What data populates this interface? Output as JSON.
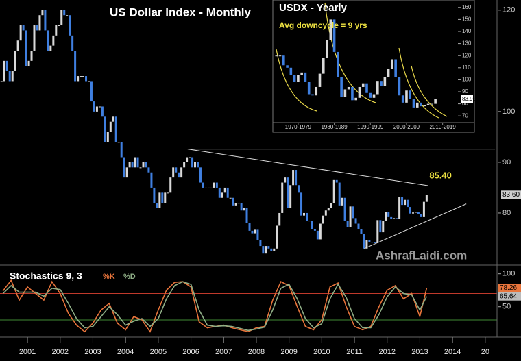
{
  "chart_data": [
    {
      "type": "candlestick",
      "title": "US Dollar Index - Monthly",
      "watermark": "AshrafLaidi.com",
      "color_up": "#d9d9d9",
      "color_down": "#3f7fe0",
      "x": [
        2000.208,
        2000.292,
        2000.375,
        2000.458,
        2000.542,
        2000.625,
        2000.708,
        2000.792,
        2000.875,
        2000.958,
        2001.042,
        2001.125,
        2001.208,
        2001.292,
        2001.375,
        2001.458,
        2001.542,
        2001.625,
        2001.708,
        2001.792,
        2001.875,
        2001.958,
        2002.042,
        2002.125,
        2002.208,
        2002.292,
        2002.375,
        2002.458,
        2002.542,
        2002.625,
        2002.708,
        2002.792,
        2002.875,
        2002.958,
        2003.042,
        2003.125,
        2003.208,
        2003.292,
        2003.375,
        2003.458,
        2003.542,
        2003.625,
        2003.708,
        2003.792,
        2003.875,
        2003.958,
        2004.042,
        2004.125,
        2004.208,
        2004.292,
        2004.375,
        2004.458,
        2004.542,
        2004.625,
        2004.708,
        2004.792,
        2004.875,
        2004.958,
        2005.042,
        2005.125,
        2005.208,
        2005.292,
        2005.375,
        2005.458,
        2005.542,
        2005.625,
        2005.708,
        2005.792,
        2005.875,
        2005.958,
        2006.042,
        2006.125,
        2006.208,
        2006.292,
        2006.375,
        2006.458,
        2006.542,
        2006.625,
        2006.708,
        2006.792,
        2006.875,
        2006.958,
        2007.042,
        2007.125,
        2007.208,
        2007.292,
        2007.375,
        2007.458,
        2007.542,
        2007.625,
        2007.708,
        2007.792,
        2007.875,
        2007.958,
        2008.042,
        2008.125,
        2008.208,
        2008.292,
        2008.375,
        2008.458,
        2008.542,
        2008.625,
        2008.708,
        2008.792,
        2008.875,
        2008.958,
        2009.042,
        2009.125,
        2009.208,
        2009.292,
        2009.375,
        2009.458,
        2009.542,
        2009.625,
        2009.708,
        2009.792,
        2009.875,
        2009.958,
        2010.042,
        2010.125,
        2010.208,
        2010.292,
        2010.375,
        2010.458,
        2010.542,
        2010.625,
        2010.708,
        2010.792,
        2010.875,
        2010.958,
        2011.042,
        2011.125,
        2011.208,
        2011.292,
        2011.375,
        2011.458,
        2011.542,
        2011.625,
        2011.708,
        2011.792,
        2011.875,
        2011.958,
        2012.042,
        2012.125,
        2012.208,
        2012.292,
        2012.375,
        2012.458,
        2012.542,
        2012.625,
        2012.708,
        2012.792,
        2012.875,
        2012.958,
        2013.042,
        2013.125,
        2013.208
      ],
      "values": [
        106,
        110,
        108,
        106,
        108,
        112,
        114,
        117,
        116,
        109,
        110,
        112,
        117,
        116,
        119,
        120,
        116,
        112,
        113,
        115,
        117,
        117,
        120,
        119,
        119,
        115,
        112,
        106,
        107,
        107,
        107,
        106,
        106,
        102,
        100,
        101,
        101,
        99,
        94,
        96,
        98,
        99,
        94,
        94,
        91,
        87,
        89,
        90,
        89,
        91,
        89,
        89,
        90,
        89,
        88,
        85,
        82,
        81,
        84,
        82,
        84,
        84,
        87,
        89,
        88,
        87,
        89,
        90,
        91,
        91,
        89,
        90,
        89,
        86,
        85,
        85,
        85,
        85,
        86,
        85,
        83,
        84,
        85,
        83,
        83,
        81.5,
        82,
        82,
        80.5,
        81,
        78,
        76.5,
        76,
        76.7,
        74.7,
        73.5,
        72,
        73.5,
        73,
        72.5,
        73,
        77.5,
        80,
        86,
        87,
        81,
        85.5,
        88.5,
        85.5,
        84,
        79.5,
        80,
        78.5,
        78.5,
        76.8,
        76.5,
        74.8,
        77.9,
        79.5,
        80.5,
        81,
        82,
        86.5,
        86,
        81.5,
        83,
        78.5,
        77.2,
        81.3,
        79,
        77.9,
        76.8,
        75.9,
        73,
        74.6,
        74.3,
        74.2,
        74.1,
        78.6,
        76.2,
        78.4,
        80.2,
        79.2,
        78.9,
        79,
        78.8,
        83.1,
        81.6,
        82.6,
        81.2,
        79.9,
        80.1,
        80.2,
        79.8,
        79.2,
        82.2,
        83.6
      ],
      "xlim": [
        2000.16,
        2015.36
      ],
      "ylim": [
        70,
        122
      ],
      "xticks": [
        2001,
        2002,
        2003,
        2004,
        2005,
        2006,
        2007,
        2008,
        2009,
        2010,
        2011,
        2012,
        2013,
        2014,
        {
          "value": 2015,
          "label": "20"
        }
      ],
      "yticks": [
        80,
        90,
        100,
        120
      ],
      "price_tag": {
        "value": 83.6,
        "label": "83.60"
      },
      "trendlines": [
        {
          "x": [
            2005.9,
            2013.25
          ],
          "y": [
            92.6,
            85.4
          ]
        },
        {
          "x": [
            2005.9,
            2015.3
          ],
          "y": [
            92.6,
            92.6
          ]
        },
        {
          "x": [
            2011.3,
            2014.42
          ],
          "y": [
            73,
            81.8
          ]
        }
      ],
      "annotation": {
        "value": 85.4,
        "label": "85.40"
      }
    },
    {
      "type": "candlestick",
      "title": "USDX - Yearly",
      "subtitle": "Avg downcycle = 9 yrs",
      "color_up": "#d9d9d9",
      "color_down": "#3f7fe0",
      "x": [
        1969,
        1970,
        1971,
        1972,
        1973,
        1974,
        1975,
        1976,
        1977,
        1978,
        1979,
        1980,
        1981,
        1982,
        1983,
        1984,
        1985,
        1986,
        1987,
        1988,
        1989,
        1990,
        1991,
        1992,
        1993,
        1994,
        1995,
        1996,
        1997,
        1998,
        1999,
        2000,
        2001,
        2002,
        2003,
        2004,
        2005,
        2006,
        2007,
        2008,
        2009,
        2010,
        2011,
        2012,
        2013
      ],
      "values": [
        120,
        120,
        112,
        110,
        104,
        98,
        104,
        106,
        98,
        88,
        87,
        94,
        105,
        118,
        133,
        150,
        123,
        102,
        86,
        92,
        94,
        83,
        85,
        94,
        97,
        89,
        85,
        88,
        99,
        95,
        102,
        109,
        117,
        102,
        87,
        81,
        91,
        84,
        77,
        81,
        78,
        79,
        80,
        80,
        83.92
      ],
      "xlim": [
        1968,
        2020
      ],
      "ylim": [
        65,
        165
      ],
      "xticks": [
        {
          "value": 1975,
          "label": "1970-1979"
        },
        {
          "value": 1985,
          "label": "1980-1989"
        },
        {
          "value": 1995,
          "label": "1990-1999"
        },
        {
          "value": 2005,
          "label": "2000-2009"
        },
        {
          "value": 2015,
          "label": "2010-2019"
        }
      ],
      "yticks": [
        70,
        80,
        90,
        100,
        110,
        120,
        130,
        140,
        150,
        160
      ],
      "price_tag": 83.92
    },
    {
      "type": "line",
      "title": "Stochastics 9, 3",
      "x": [
        2000.25,
        2000.5,
        2000.75,
        2001,
        2001.25,
        2001.5,
        2001.75,
        2002,
        2002.25,
        2002.5,
        2002.75,
        2003,
        2003.25,
        2003.5,
        2003.75,
        2004,
        2004.25,
        2004.5,
        2004.75,
        2005,
        2005.25,
        2005.5,
        2005.75,
        2006,
        2006.25,
        2006.5,
        2006.75,
        2007,
        2007.25,
        2007.5,
        2007.75,
        2008,
        2008.25,
        2008.5,
        2008.75,
        2009,
        2009.25,
        2009.5,
        2009.75,
        2010,
        2010.25,
        2010.5,
        2010.75,
        2011,
        2011.25,
        2011.5,
        2011.75,
        2012,
        2012.25,
        2012.5,
        2012.75,
        2013,
        2013.208
      ],
      "series": [
        {
          "name": "%K",
          "color": "#e8743b",
          "values": [
            74,
            90,
            60,
            80,
            70,
            60,
            88,
            70,
            40,
            22,
            12,
            25,
            45,
            55,
            25,
            15,
            35,
            30,
            12,
            45,
            75,
            87,
            88,
            80,
            27,
            18,
            20,
            22,
            18,
            15,
            12,
            18,
            20,
            60,
            88,
            82,
            50,
            20,
            15,
            30,
            80,
            86,
            50,
            20,
            15,
            20,
            50,
            75,
            82,
            62,
            70,
            35,
            78.26
          ]
        },
        {
          "name": "%D",
          "color": "#8fae86",
          "values": [
            70,
            82,
            72,
            72,
            72,
            66,
            78,
            76,
            55,
            32,
            18,
            20,
            35,
            50,
            38,
            22,
            28,
            32,
            20,
            32,
            62,
            82,
            88,
            84,
            45,
            22,
            20,
            21,
            20,
            17,
            14,
            16,
            19,
            45,
            78,
            84,
            62,
            32,
            18,
            24,
            62,
            84,
            64,
            32,
            18,
            18,
            38,
            65,
            80,
            70,
            68,
            45,
            65.64
          ]
        }
      ],
      "levels": [
        {
          "value": 70,
          "color": "#c0392b"
        },
        {
          "value": 30,
          "color": "#3f8a34"
        }
      ],
      "xlim": [
        2000.16,
        2015.36
      ],
      "ylim": [
        6,
        108
      ],
      "yticks": [
        50,
        100
      ]
    }
  ]
}
